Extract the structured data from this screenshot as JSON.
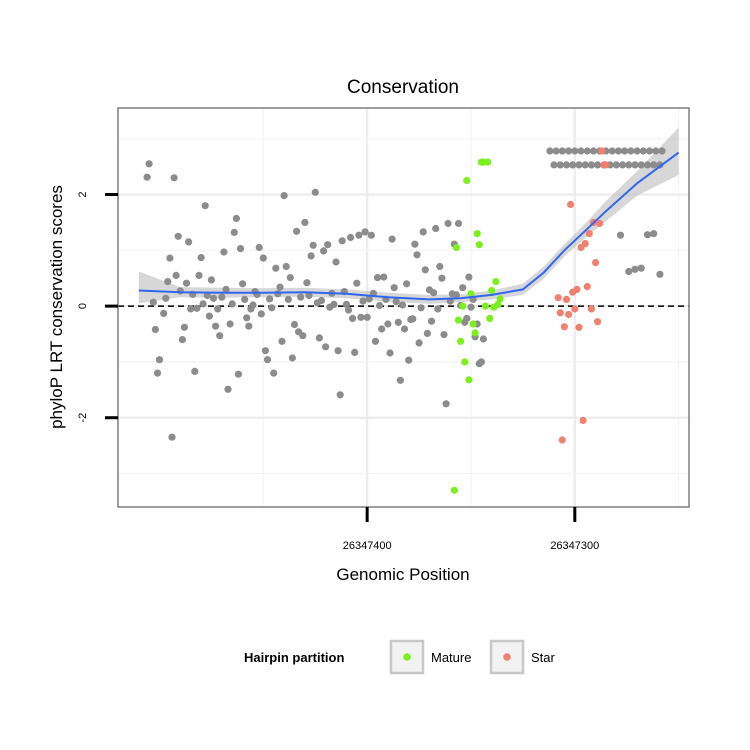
{
  "chart_data": {
    "type": "scatter",
    "title": "Conservation",
    "xlabel": "Genomic Position",
    "ylabel": "phyloP LRT conservation scores",
    "x_reversed": true,
    "xlim": [
      26347520,
      26347245
    ],
    "ylim": [
      -3.6,
      3.55
    ],
    "x_ticks": [
      26347400,
      26347300
    ],
    "x_tick_labels": [
      "26347400",
      "26347300"
    ],
    "y_ticks": [
      -2,
      0,
      2
    ],
    "y_tick_labels": [
      "-2",
      "0",
      "2"
    ],
    "reference_line": {
      "y": 0,
      "style": "dashed"
    },
    "grid": true,
    "legend": {
      "title": "Hairpin partition",
      "placement": "bottom",
      "entries": [
        {
          "label": "Mature",
          "color": "#7cf01e"
        },
        {
          "label": "Star",
          "color": "#f08070"
        }
      ]
    },
    "colors": {
      "Unassigned": "#8c8c8c",
      "Mature": "#7cf01e",
      "Star": "#f08070",
      "smooth": "#3366ee",
      "band": "#bcbcbc"
    },
    "series": [
      {
        "group": "Unassigned",
        "points": [
          [
            26347505,
            2.55
          ],
          [
            26347506,
            2.31
          ],
          [
            26347503,
            0.07
          ],
          [
            26347502,
            -0.42
          ],
          [
            26347500,
            -0.96
          ],
          [
            26347501,
            -1.2
          ],
          [
            26347497,
            0.14
          ],
          [
            26347498,
            -0.13
          ],
          [
            26347496,
            0.44
          ],
          [
            26347495,
            0.86
          ],
          [
            26347494,
            -2.35
          ],
          [
            26347493,
            2.3
          ],
          [
            26347492,
            0.55
          ],
          [
            26347491,
            1.25
          ],
          [
            26347490,
            0.27
          ],
          [
            26347489,
            -0.6
          ],
          [
            26347488,
            -0.38
          ],
          [
            26347487,
            0.41
          ],
          [
            26347486,
            1.15
          ],
          [
            26347485,
            -0.05
          ],
          [
            26347484,
            0.21
          ],
          [
            26347483,
            -1.17
          ],
          [
            26347482,
            -0.04
          ],
          [
            26347481,
            0.55
          ],
          [
            26347480,
            0.87
          ],
          [
            26347479,
            0.04
          ],
          [
            26347478,
            1.8
          ],
          [
            26347477,
            0.19
          ],
          [
            26347476,
            -0.18
          ],
          [
            26347475,
            0.47
          ],
          [
            26347474,
            0.14
          ],
          [
            26347473,
            -0.36
          ],
          [
            26347472,
            -0.05
          ],
          [
            26347471,
            -0.53
          ],
          [
            26347470,
            0.16
          ],
          [
            26347469,
            0.97
          ],
          [
            26347468,
            0.3
          ],
          [
            26347467,
            -1.49
          ],
          [
            26347466,
            -0.32
          ],
          [
            26347465,
            0.04
          ],
          [
            26347464,
            1.32
          ],
          [
            26347463,
            1.57
          ],
          [
            26347462,
            -1.22
          ],
          [
            26347461,
            1.03
          ],
          [
            26347460,
            0.4
          ],
          [
            26347459,
            0.12
          ],
          [
            26347458,
            -0.21
          ],
          [
            26347457,
            -0.36
          ],
          [
            26347456,
            -0.05
          ],
          [
            26347455,
            0.02
          ],
          [
            26347454,
            0.26
          ],
          [
            26347453,
            0.21
          ],
          [
            26347452,
            1.05
          ],
          [
            26347451,
            -0.14
          ],
          [
            26347450,
            0.86
          ],
          [
            26347449,
            -0.8
          ],
          [
            26347448,
            -0.96
          ],
          [
            26347447,
            0.13
          ],
          [
            26347446,
            -0.03
          ],
          [
            26347445,
            -1.2
          ],
          [
            26347444,
            0.68
          ],
          [
            26347443,
            0.22
          ],
          [
            26347442,
            0.34
          ],
          [
            26347441,
            -0.63
          ],
          [
            26347440,
            1.98
          ],
          [
            26347439,
            0.71
          ],
          [
            26347438,
            0.12
          ],
          [
            26347437,
            0.51
          ],
          [
            26347436,
            -0.93
          ],
          [
            26347435,
            -0.33
          ],
          [
            26347434,
            1.34
          ],
          [
            26347433,
            -0.46
          ],
          [
            26347432,
            0.16
          ],
          [
            26347431,
            -0.53
          ],
          [
            26347430,
            1.5
          ],
          [
            26347429,
            0.42
          ],
          [
            26347428,
            0.19
          ],
          [
            26347427,
            0.9
          ],
          [
            26347426,
            1.09
          ],
          [
            26347425,
            2.04
          ],
          [
            26347424,
            0.06
          ],
          [
            26347423,
            -0.57
          ],
          [
            26347422,
            0.1
          ],
          [
            26347421,
            0.99
          ],
          [
            26347420,
            -0.73
          ],
          [
            26347419,
            1.1
          ],
          [
            26347418,
            -0.02
          ],
          [
            26347417,
            0.23
          ],
          [
            26347416,
            0.03
          ],
          [
            26347415,
            0.79
          ],
          [
            26347414,
            -0.8
          ],
          [
            26347413,
            -1.59
          ],
          [
            26347412,
            1.17
          ],
          [
            26347411,
            0.26
          ],
          [
            26347410,
            0.03
          ],
          [
            26347409,
            -0.07
          ],
          [
            26347408,
            1.23
          ],
          [
            26347407,
            -0.22
          ],
          [
            26347406,
            -0.83
          ],
          [
            26347405,
            0.41
          ],
          [
            26347404,
            1.27
          ],
          [
            26347403,
            -0.2
          ],
          [
            26347402,
            0.09
          ],
          [
            26347401,
            1.33
          ],
          [
            26347400,
            -0.2
          ],
          [
            26347399,
            0.13
          ],
          [
            26347398,
            1.27
          ],
          [
            26347397,
            0.23
          ],
          [
            26347396,
            -0.63
          ],
          [
            26347395,
            0.51
          ],
          [
            26347394,
            0.01
          ],
          [
            26347393,
            -0.41
          ],
          [
            26347392,
            0.52
          ],
          [
            26347391,
            0.12
          ],
          [
            26347390,
            -0.32
          ],
          [
            26347389,
            -0.84
          ],
          [
            26347388,
            1.2
          ],
          [
            26347387,
            0.33
          ],
          [
            26347386,
            0.08
          ],
          [
            26347385,
            -0.29
          ],
          [
            26347384,
            -1.33
          ],
          [
            26347383,
            0.02
          ],
          [
            26347382,
            -0.41
          ],
          [
            26347381,
            0.4
          ],
          [
            26347380,
            -0.97
          ],
          [
            26347379,
            -0.24
          ],
          [
            26347378,
            -0.23
          ],
          [
            26347377,
            1.11
          ],
          [
            26347376,
            0.92
          ],
          [
            26347375,
            -0.66
          ],
          [
            26347374,
            -0.03
          ],
          [
            26347373,
            1.33
          ],
          [
            26347372,
            0.65
          ],
          [
            26347371,
            -0.49
          ],
          [
            26347370,
            0.29
          ],
          [
            26347369,
            -0.27
          ],
          [
            26347368,
            0.24
          ],
          [
            26347367,
            1.39
          ],
          [
            26347366,
            -0.05
          ],
          [
            26347365,
            0.71
          ],
          [
            26347364,
            0.5
          ],
          [
            26347363,
            -0.51
          ],
          [
            26347362,
            -1.75
          ],
          [
            26347361,
            1.48
          ],
          [
            26347360,
            0.09
          ],
          [
            26347359,
            0.22
          ],
          [
            26347358,
            1.11
          ],
          [
            26347357,
            0.2
          ],
          [
            26347356,
            1.48
          ],
          [
            26347355,
            0.01
          ],
          [
            26347354,
            0.33
          ],
          [
            26347353,
            -0.29
          ],
          [
            26347352,
            -0.22
          ],
          [
            26347351,
            0.52
          ],
          [
            26347350,
            -0.02
          ],
          [
            26347349,
            0.12
          ],
          [
            26347348,
            -0.55
          ],
          [
            26347347,
            -0.32
          ],
          [
            26347346,
            -1.03
          ],
          [
            26347345,
            -1.0
          ],
          [
            26347344,
            -0.59
          ],
          [
            26347278,
            1.27
          ],
          [
            26347274,
            0.62
          ],
          [
            26347271,
            0.66
          ],
          [
            26347268,
            0.68
          ],
          [
            26347265,
            1.28
          ],
          [
            26347262,
            1.3
          ],
          [
            26347259,
            0.57
          ]
        ]
      },
      {
        "group": "Unassigned",
        "band": "top",
        "points": [
          [
            26347312,
            2.78
          ],
          [
            26347309,
            2.78
          ],
          [
            26347306,
            2.78
          ],
          [
            26347303,
            2.78
          ],
          [
            26347300,
            2.78
          ],
          [
            26347297,
            2.78
          ],
          [
            26347294,
            2.78
          ],
          [
            26347291,
            2.78
          ],
          [
            26347288,
            2.78
          ],
          [
            26347285,
            2.78
          ],
          [
            26347282,
            2.78
          ],
          [
            26347279,
            2.78
          ],
          [
            26347276,
            2.78
          ],
          [
            26347273,
            2.78
          ],
          [
            26347270,
            2.78
          ],
          [
            26347267,
            2.78
          ],
          [
            26347264,
            2.78
          ],
          [
            26347261,
            2.78
          ],
          [
            26347258,
            2.78
          ],
          [
            26347310,
            2.53
          ],
          [
            26347307,
            2.53
          ],
          [
            26347304,
            2.53
          ],
          [
            26347301,
            2.53
          ],
          [
            26347298,
            2.53
          ],
          [
            26347295,
            2.53
          ],
          [
            26347292,
            2.53
          ],
          [
            26347289,
            2.53
          ],
          [
            26347286,
            2.53
          ],
          [
            26347283,
            2.53
          ],
          [
            26347280,
            2.53
          ],
          [
            26347277,
            2.53
          ],
          [
            26347274,
            2.53
          ],
          [
            26347271,
            2.53
          ],
          [
            26347268,
            2.53
          ],
          [
            26347265,
            2.53
          ],
          [
            26347262,
            2.53
          ],
          [
            26347259,
            2.53
          ]
        ]
      },
      {
        "group": "Mature",
        "points": [
          [
            26347358,
            -3.3
          ],
          [
            26347357,
            1.05
          ],
          [
            26347356,
            -0.25
          ],
          [
            26347355,
            -0.63
          ],
          [
            26347354,
            0.0
          ],
          [
            26347353,
            -1.0
          ],
          [
            26347352,
            2.25
          ],
          [
            26347351,
            -1.32
          ],
          [
            26347350,
            0.22
          ],
          [
            26347349,
            -0.32
          ],
          [
            26347348,
            -0.48
          ],
          [
            26347347,
            1.3
          ],
          [
            26347346,
            1.1
          ],
          [
            26347345,
            2.58
          ],
          [
            26347344,
            2.58
          ],
          [
            26347343,
            0.0
          ],
          [
            26347342,
            2.58
          ],
          [
            26347341,
            -0.22
          ],
          [
            26347340,
            0.28
          ],
          [
            26347339,
            -0.02
          ],
          [
            26347338,
            0.44
          ],
          [
            26347337,
            0.03
          ],
          [
            26347336,
            0.13
          ]
        ]
      },
      {
        "group": "Star",
        "points": [
          [
            26347308,
            0.15
          ],
          [
            26347307,
            -0.12
          ],
          [
            26347306,
            -2.4
          ],
          [
            26347305,
            -0.37
          ],
          [
            26347304,
            0.12
          ],
          [
            26347303,
            -0.15
          ],
          [
            26347302,
            1.82
          ],
          [
            26347301,
            0.25
          ],
          [
            26347300,
            -0.05
          ],
          [
            26347299,
            0.3
          ],
          [
            26347298,
            -0.38
          ],
          [
            26347297,
            1.05
          ],
          [
            26347296,
            -2.05
          ],
          [
            26347295,
            1.12
          ],
          [
            26347294,
            0.35
          ],
          [
            26347293,
            1.3
          ],
          [
            26347292,
            -0.05
          ],
          [
            26347291,
            1.5
          ],
          [
            26347290,
            0.78
          ],
          [
            26347289,
            -0.28
          ],
          [
            26347288,
            1.48
          ],
          [
            26347287,
            2.78
          ],
          [
            26347286,
            2.53
          ],
          [
            26347285,
            2.53
          ]
        ]
      }
    ],
    "smooth": {
      "x": [
        26347510,
        26347490,
        26347470,
        26347450,
        26347430,
        26347410,
        26347390,
        26347370,
        26347355,
        26347340,
        26347325,
        26347315,
        26347305,
        26347295,
        26347285,
        26347270,
        26347250
      ],
      "y": [
        0.28,
        0.25,
        0.24,
        0.24,
        0.25,
        0.22,
        0.16,
        0.12,
        0.14,
        0.2,
        0.3,
        0.6,
        1.0,
        1.35,
        1.7,
        2.2,
        2.75
      ],
      "band_lo": [
        0.05,
        0.16,
        0.15,
        0.16,
        0.17,
        0.14,
        0.08,
        0.04,
        0.07,
        0.12,
        0.2,
        0.49,
        0.89,
        1.22,
        1.52,
        1.98,
        2.35
      ],
      "band_hi": [
        0.62,
        0.34,
        0.33,
        0.32,
        0.33,
        0.3,
        0.24,
        0.2,
        0.21,
        0.28,
        0.4,
        0.71,
        1.11,
        1.48,
        1.88,
        2.42,
        3.2
      ]
    }
  }
}
